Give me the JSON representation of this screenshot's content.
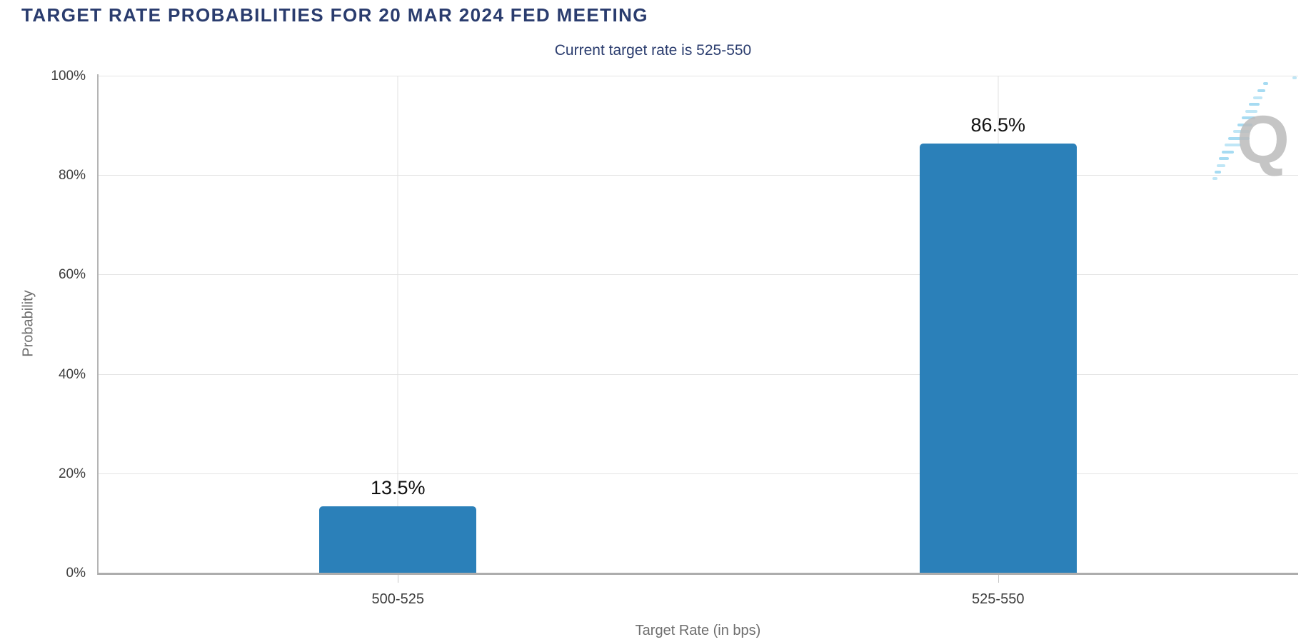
{
  "header": {
    "title": "TARGET RATE PROBABILITIES FOR 20 MAR 2024 FED MEETING",
    "subtitle": "Current target rate is 525-550"
  },
  "chart_data": {
    "type": "bar",
    "title": "TARGET RATE PROBABILITIES FOR 20 MAR 2024 FED MEETING",
    "subtitle": "Current target rate is 525-550",
    "categories": [
      "500-525",
      "525-550"
    ],
    "values": [
      13.5,
      86.5
    ],
    "value_labels": [
      "13.5%",
      "86.5%"
    ],
    "xlabel": "Target Rate (in bps)",
    "ylabel": "Probability",
    "ylim": [
      0,
      100
    ],
    "y_tick_values": [
      0,
      20,
      40,
      60,
      80,
      100
    ],
    "y_tick_labels": [
      "0%",
      "20%",
      "40%",
      "60%",
      "80%",
      "100%"
    ],
    "grid": true,
    "legend_position": "none",
    "bar_color": "#2b80b9"
  },
  "colors": {
    "title_navy": "#2a3c6e",
    "bar_blue": "#2b80b9",
    "gridline": "#e4e4e4",
    "axis_line": "#b4b4b4",
    "baseline": "#adadad",
    "tick_text": "#3d3d3d",
    "axis_title_text": "#6e6e6e",
    "value_label_text": "#101010",
    "watermark_gray": "#bcbcbc",
    "watermark_blue": "#a6dbf2"
  },
  "watermark": {
    "letter": "Q",
    "name": "quikstrike-logo"
  }
}
